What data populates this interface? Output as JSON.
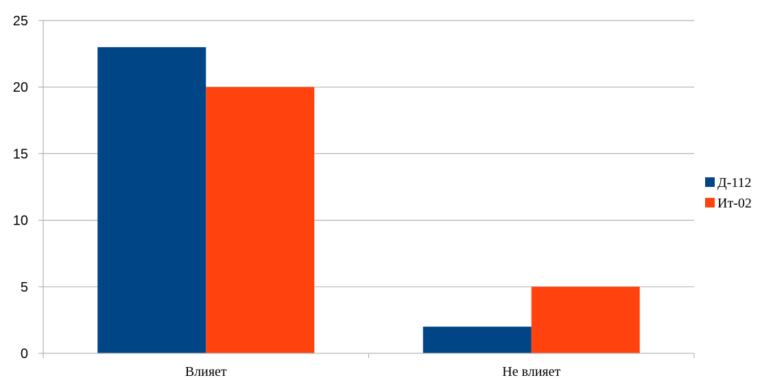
{
  "chart_data": {
    "type": "bar",
    "categories": [
      "Влияет",
      "Не влияет"
    ],
    "series": [
      {
        "name": "Д-112",
        "values": [
          23,
          2
        ],
        "color": "#004586"
      },
      {
        "name": "Ит-02",
        "values": [
          20,
          5
        ],
        "color": "#ff420e"
      }
    ],
    "ylim": [
      0,
      25
    ],
    "yticks": [
      0,
      5,
      10,
      15,
      20,
      25
    ],
    "grid": true,
    "legend_position": "right",
    "title": "",
    "xlabel": "",
    "ylabel": ""
  }
}
